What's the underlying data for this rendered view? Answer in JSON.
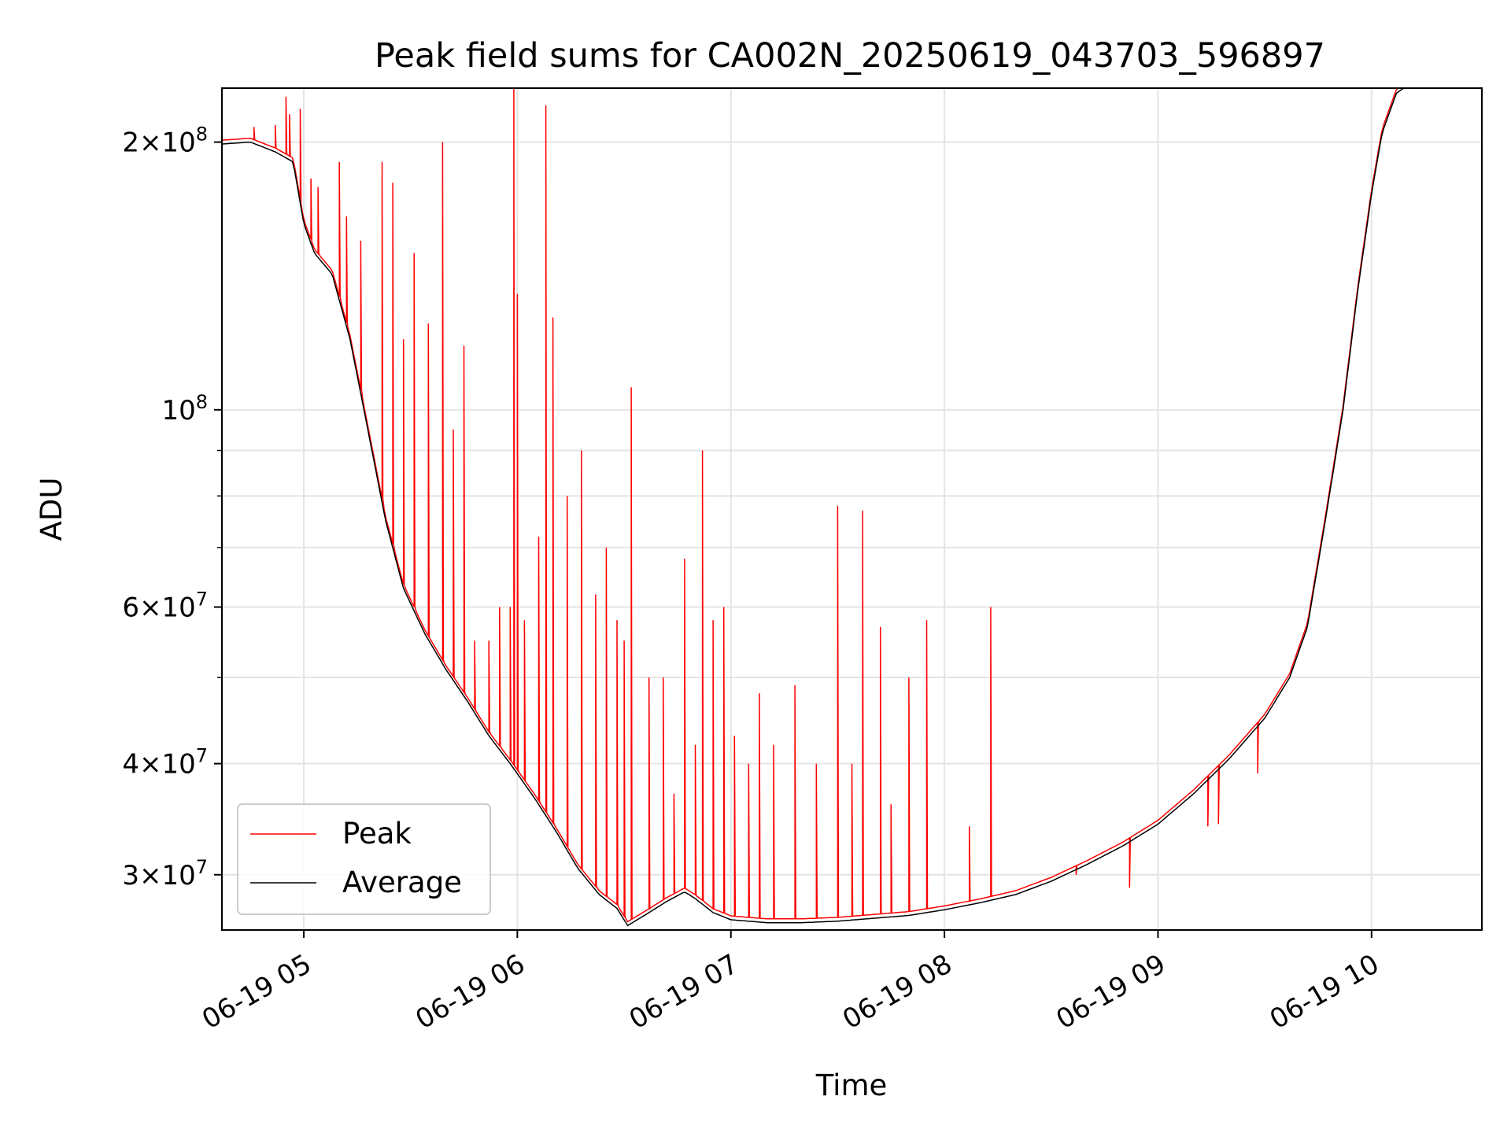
{
  "chart_data": {
    "type": "line",
    "title": "Peak field sums for CA002N_20250619_043703_596897",
    "xlabel": "Time",
    "ylabel": "ADU",
    "yscale": "log",
    "grid": true,
    "legend_position": "lower-left",
    "xlim": [
      "06-19 04:37",
      "06-19 10:31"
    ],
    "ylim": [
      26000000,
      230000000
    ],
    "x_ticks": [
      "06-19 05",
      "06-19 06",
      "06-19 07",
      "06-19 08",
      "06-19 09",
      "06-19 10"
    ],
    "x_tick_hours": [
      5,
      6,
      7,
      8,
      9,
      10
    ],
    "y_ticks": [
      {
        "value": 200000000,
        "mantissa": "2",
        "exp": "8"
      },
      {
        "value": 100000000,
        "mantissa": "",
        "exp": "8"
      },
      {
        "value": 60000000,
        "mantissa": "6",
        "exp": "7"
      },
      {
        "value": 40000000,
        "mantissa": "4",
        "exp": "7"
      },
      {
        "value": 30000000,
        "mantissa": "3",
        "exp": "7"
      }
    ],
    "y_minor_ticks": [
      90000000,
      80000000,
      70000000,
      50000000
    ],
    "series": [
      {
        "name": "Average",
        "color": "#000000",
        "points": [
          [
            "04:37",
            199000000
          ],
          [
            "04:45",
            200000000
          ],
          [
            "04:52",
            195000000
          ],
          [
            "04:57",
            190000000
          ],
          [
            "05:00",
            162000000
          ],
          [
            "05:03",
            150000000
          ],
          [
            "05:08",
            142000000
          ],
          [
            "05:13",
            120000000
          ],
          [
            "05:18",
            95000000
          ],
          [
            "05:23",
            75000000
          ],
          [
            "05:28",
            63000000
          ],
          [
            "05:34",
            56000000
          ],
          [
            "05:40",
            51000000
          ],
          [
            "05:46",
            47000000
          ],
          [
            "05:52",
            43000000
          ],
          [
            "05:58",
            40000000
          ],
          [
            "06:05",
            36500000
          ],
          [
            "06:11",
            33500000
          ],
          [
            "06:17",
            30500000
          ],
          [
            "06:23",
            28500000
          ],
          [
            "06:28",
            27500000
          ],
          [
            "06:31",
            26300000
          ],
          [
            "06:37",
            27200000
          ],
          [
            "06:42",
            28000000
          ],
          [
            "06:47",
            28700000
          ],
          [
            "06:50",
            28200000
          ],
          [
            "06:55",
            27200000
          ],
          [
            "07:00",
            26700000
          ],
          [
            "07:10",
            26500000
          ],
          [
            "07:20",
            26500000
          ],
          [
            "07:30",
            26600000
          ],
          [
            "07:40",
            26800000
          ],
          [
            "07:50",
            27000000
          ],
          [
            "08:00",
            27400000
          ],
          [
            "08:10",
            27900000
          ],
          [
            "08:20",
            28500000
          ],
          [
            "08:30",
            29500000
          ],
          [
            "08:40",
            30800000
          ],
          [
            "08:50",
            32300000
          ],
          [
            "09:00",
            34200000
          ],
          [
            "09:10",
            37000000
          ],
          [
            "09:20",
            40500000
          ],
          [
            "09:30",
            45000000
          ],
          [
            "09:37",
            50000000
          ],
          [
            "09:42",
            57000000
          ],
          [
            "09:47",
            75000000
          ],
          [
            "09:52",
            100000000
          ],
          [
            "09:56",
            135000000
          ],
          [
            "10:00",
            175000000
          ],
          [
            "10:03",
            205000000
          ],
          [
            "10:07",
            227000000
          ],
          [
            "10:09",
            230000000
          ]
        ]
      },
      {
        "name": "Peak",
        "color": "#ff0000",
        "spikes": [
          [
            "04:46",
            208000000
          ],
          [
            "04:52",
            209000000
          ],
          [
            "04:55",
            225000000
          ],
          [
            "04:56",
            215000000
          ],
          [
            "04:59",
            218000000
          ],
          [
            "05:02",
            182000000
          ],
          [
            "05:04",
            178000000
          ],
          [
            "05:10",
            190000000
          ],
          [
            "05:12",
            165000000
          ],
          [
            "05:16",
            155000000
          ],
          [
            "05:22",
            190000000
          ],
          [
            "05:25",
            180000000
          ],
          [
            "05:28",
            120000000
          ],
          [
            "05:31",
            150000000
          ],
          [
            "05:35",
            125000000
          ],
          [
            "05:39",
            200000000
          ],
          [
            "05:42",
            95000000
          ],
          [
            "05:45",
            118000000
          ],
          [
            "05:48",
            55000000
          ],
          [
            "05:52",
            55000000
          ],
          [
            "05:55",
            60000000
          ],
          [
            "05:58",
            60000000
          ],
          [
            "05:59",
            230000000
          ],
          [
            "06:00",
            135000000
          ],
          [
            "06:02",
            58000000
          ],
          [
            "06:06",
            72000000
          ],
          [
            "06:08",
            220000000
          ],
          [
            "06:10",
            127000000
          ],
          [
            "06:14",
            80000000
          ],
          [
            "06:18",
            90000000
          ],
          [
            "06:22",
            62000000
          ],
          [
            "06:25",
            70000000
          ],
          [
            "06:28",
            58000000
          ],
          [
            "06:30",
            55000000
          ],
          [
            "06:32",
            106000000
          ],
          [
            "06:37",
            50000000
          ],
          [
            "06:41",
            50000000
          ],
          [
            "06:44",
            37000000
          ],
          [
            "06:47",
            68000000
          ],
          [
            "06:50",
            42000000
          ],
          [
            "06:52",
            90000000
          ],
          [
            "06:55",
            58000000
          ],
          [
            "06:58",
            60000000
          ],
          [
            "07:01",
            43000000
          ],
          [
            "07:05",
            40000000
          ],
          [
            "07:08",
            48000000
          ],
          [
            "07:12",
            42000000
          ],
          [
            "07:18",
            49000000
          ],
          [
            "07:24",
            40000000
          ],
          [
            "07:30",
            78000000
          ],
          [
            "07:34",
            40000000
          ],
          [
            "07:37",
            77000000
          ],
          [
            "07:42",
            57000000
          ],
          [
            "07:45",
            36000000
          ],
          [
            "07:50",
            50000000
          ],
          [
            "07:55",
            58000000
          ],
          [
            "08:07",
            34000000
          ],
          [
            "08:13",
            60000000
          ],
          [
            "08:37",
            30000000
          ],
          [
            "08:52",
            29000000
          ],
          [
            "09:14",
            34000000
          ],
          [
            "09:17",
            34200000
          ],
          [
            "09:28",
            39000000
          ]
        ]
      }
    ]
  },
  "legend": {
    "items": [
      {
        "name": "Peak",
        "color": "#ff0000"
      },
      {
        "name": "Average",
        "color": "#000000"
      }
    ]
  }
}
